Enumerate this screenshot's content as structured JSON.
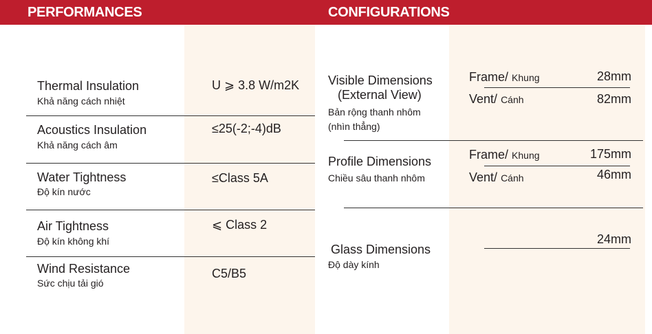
{
  "colors": {
    "header": "#be1e2d",
    "column": "#fdf5ec"
  },
  "performances": {
    "title": "PERFORMANCES",
    "rows": [
      {
        "label": "Thermal Insulation",
        "sub": "Khả năng cách nhiệt",
        "value": "U ⩾ 3.8 W/m2K"
      },
      {
        "label": "Acoustics Insulation",
        "sub": "Khả năng cách âm",
        "value": "≤25(-2;-4)dB"
      },
      {
        "label": "Water Tightness",
        "sub": "Độ kín nước",
        "value": "≤Class 5A"
      },
      {
        "label": "Air Tightness",
        "sub": "Độ kín không khí",
        "value": "⩽ Class 2"
      },
      {
        "label": "Wind Resistance",
        "sub": "Sức chịu tải gió",
        "value": "C5/B5"
      }
    ]
  },
  "configurations": {
    "title": "CONFIGURATIONS",
    "visible": {
      "label": "Visible Dimensions",
      "label2": "(External View)",
      "sub": "Bản rộng  thanh nhôm",
      "sub2": "(nhìn thẳng)",
      "frame_label": "Frame/",
      "frame_sub": "Khung",
      "frame_value": "28mm",
      "vent_label": "Vent/",
      "vent_sub": "Cánh",
      "vent_value": "82mm"
    },
    "profile": {
      "label": "Profile Dimensions",
      "sub": "Chiều sâu thanh nhôm",
      "frame_label": "Frame/",
      "frame_sub": "Khung",
      "frame_value": "175mm",
      "vent_label": "Vent/",
      "vent_sub": "Cánh",
      "vent_value": "46mm"
    },
    "glass": {
      "label": "Glass Dimensions",
      "sub": "Độ dày kính",
      "value": "24mm"
    }
  }
}
